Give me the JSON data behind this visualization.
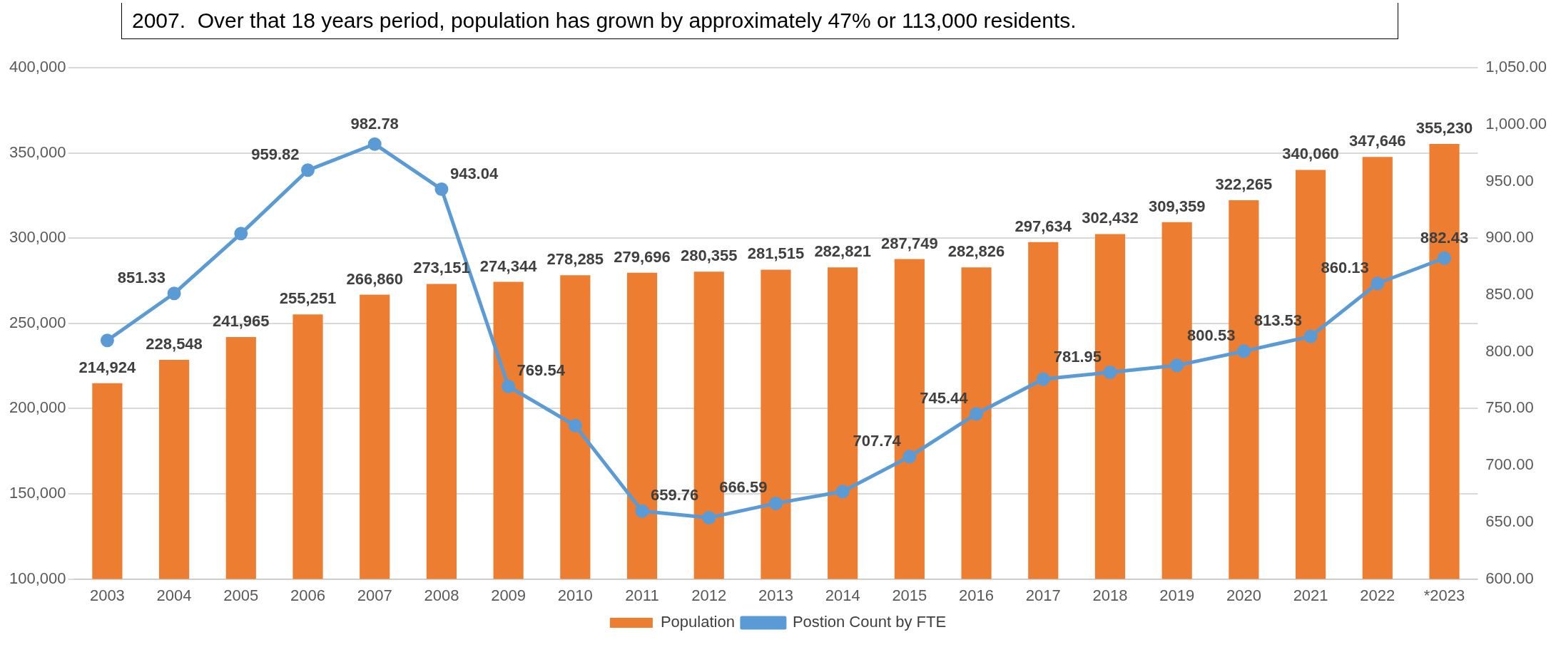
{
  "chart_data": {
    "type": "bar",
    "categories": [
      "2003",
      "2004",
      "2005",
      "2006",
      "2007",
      "2008",
      "2009",
      "2010",
      "2011",
      "2012",
      "2013",
      "2014",
      "2015",
      "2016",
      "2017",
      "2018",
      "2019",
      "2020",
      "2021",
      "2022",
      "*2023"
    ],
    "series": [
      {
        "name": "Population",
        "color": "#ed7d31",
        "values": [
          214924,
          228548,
          241965,
          255251,
          266860,
          273151,
          274344,
          278285,
          279696,
          280355,
          281515,
          282821,
          287749,
          282826,
          297634,
          302432,
          309359,
          322265,
          340060,
          347646,
          355230
        ],
        "value_labels": [
          "214,924",
          "228,548",
          "241,965",
          "255,251",
          "266,860",
          "273,151",
          "274,344",
          "278,285",
          "279,696",
          "280,355",
          "281,515",
          "282,821",
          "287,749",
          "282,826",
          "297,634",
          "302,432",
          "309,359",
          "322,265",
          "340,060",
          "347,646",
          "355,230"
        ]
      },
      {
        "name": "Postion Count by FTE",
        "type": "line",
        "axis": "y2",
        "color": "#5b9bd5",
        "marker": "circle",
        "values": [
          810,
          851.33,
          904,
          959.82,
          982.78,
          943.04,
          769.54,
          735,
          659.76,
          654,
          666.59,
          677,
          707.74,
          745.44,
          776,
          781.95,
          788,
          800.53,
          813.53,
          860.13,
          882.43
        ],
        "value_labels": [
          null,
          "851.33",
          null,
          "959.82",
          "982.78",
          "943.04",
          "769.54",
          null,
          "659.76",
          null,
          "666.59",
          null,
          "707.74",
          "745.44",
          null,
          "781.95",
          null,
          "800.53",
          "813.53",
          "860.13",
          "882.43"
        ]
      }
    ],
    "ylim": [
      100000,
      400000
    ],
    "yticks": [
      {
        "value": 100000,
        "label": "100,000"
      },
      {
        "value": 150000,
        "label": "150,000"
      },
      {
        "value": 200000,
        "label": "200,000"
      },
      {
        "value": 250000,
        "label": "250,000"
      },
      {
        "value": 300000,
        "label": "300,000"
      },
      {
        "value": 350000,
        "label": "350,000"
      },
      {
        "value": 400000,
        "label": "400,000"
      }
    ],
    "y2lim": [
      600,
      1050
    ],
    "y2ticks": [
      {
        "value": 600,
        "label": "600.00"
      },
      {
        "value": 650,
        "label": "650.00"
      },
      {
        "value": 700,
        "label": "700.00"
      },
      {
        "value": 750,
        "label": "750.00"
      },
      {
        "value": 800,
        "label": "800.00"
      },
      {
        "value": 850,
        "label": "850.00"
      },
      {
        "value": 900,
        "label": "900.00"
      },
      {
        "value": 950,
        "label": "950.00"
      },
      {
        "value": 1000,
        "label": "1,000.00"
      },
      {
        "value": 1050,
        "label": "1,050.00"
      }
    ],
    "grid": "y",
    "legend": "bottom",
    "annotations": [
      "2007.  Over that 18 years period, population has grown by approximately 47% or 113,000 residents."
    ]
  }
}
